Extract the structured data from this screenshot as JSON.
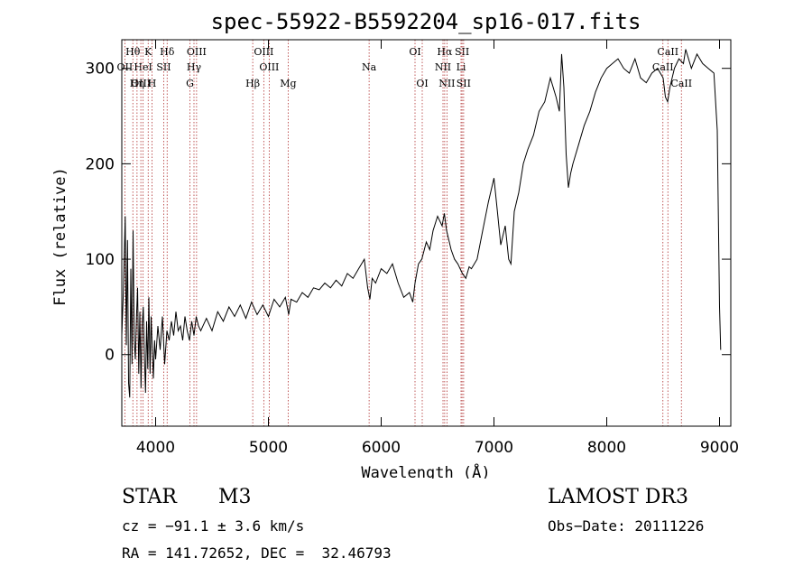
{
  "chart_data": {
    "type": "line",
    "title": "spec-55922-B5592204_sp16-017.fits",
    "xlabel": "Wavelength (Å)",
    "ylabel": "Flux (relative)",
    "xlim": [
      3700,
      9100
    ],
    "ylim": [
      -75,
      330
    ],
    "x_ticks": [
      4000,
      5000,
      6000,
      7000,
      8000,
      9000
    ],
    "y_ticks": [
      0,
      100,
      200,
      300
    ],
    "line_color": "#000000",
    "marker_color": "#b03030",
    "series": [
      {
        "name": "flux",
        "points": [
          [
            3700,
            20
          ],
          [
            3715,
            70
          ],
          [
            3730,
            145
          ],
          [
            3740,
            10
          ],
          [
            3750,
            120
          ],
          [
            3760,
            -30
          ],
          [
            3770,
            -45
          ],
          [
            3780,
            90
          ],
          [
            3790,
            -10
          ],
          [
            3800,
            130
          ],
          [
            3810,
            15
          ],
          [
            3820,
            -5
          ],
          [
            3830,
            40
          ],
          [
            3840,
            70
          ],
          [
            3850,
            -20
          ],
          [
            3860,
            45
          ],
          [
            3870,
            -35
          ],
          [
            3880,
            30
          ],
          [
            3890,
            50
          ],
          [
            3900,
            0
          ],
          [
            3910,
            -40
          ],
          [
            3920,
            35
          ],
          [
            3930,
            -15
          ],
          [
            3940,
            60
          ],
          [
            3950,
            -20
          ],
          [
            3960,
            40
          ],
          [
            3970,
            5
          ],
          [
            3980,
            -25
          ],
          [
            3990,
            15
          ],
          [
            4000,
            -5
          ],
          [
            4020,
            30
          ],
          [
            4040,
            5
          ],
          [
            4060,
            40
          ],
          [
            4080,
            -10
          ],
          [
            4100,
            25
          ],
          [
            4120,
            15
          ],
          [
            4140,
            35
          ],
          [
            4160,
            20
          ],
          [
            4180,
            45
          ],
          [
            4200,
            25
          ],
          [
            4220,
            30
          ],
          [
            4240,
            15
          ],
          [
            4260,
            40
          ],
          [
            4280,
            25
          ],
          [
            4300,
            15
          ],
          [
            4320,
            35
          ],
          [
            4340,
            20
          ],
          [
            4360,
            40
          ],
          [
            4380,
            30
          ],
          [
            4400,
            25
          ],
          [
            4450,
            38
          ],
          [
            4500,
            25
          ],
          [
            4550,
            45
          ],
          [
            4600,
            35
          ],
          [
            4650,
            50
          ],
          [
            4700,
            40
          ],
          [
            4750,
            52
          ],
          [
            4800,
            38
          ],
          [
            4850,
            55
          ],
          [
            4900,
            42
          ],
          [
            4950,
            52
          ],
          [
            5000,
            40
          ],
          [
            5050,
            58
          ],
          [
            5100,
            50
          ],
          [
            5150,
            60
          ],
          [
            5180,
            42
          ],
          [
            5200,
            58
          ],
          [
            5250,
            55
          ],
          [
            5300,
            65
          ],
          [
            5350,
            60
          ],
          [
            5400,
            70
          ],
          [
            5450,
            68
          ],
          [
            5500,
            75
          ],
          [
            5550,
            70
          ],
          [
            5600,
            78
          ],
          [
            5650,
            72
          ],
          [
            5700,
            85
          ],
          [
            5750,
            80
          ],
          [
            5800,
            90
          ],
          [
            5850,
            100
          ],
          [
            5880,
            70
          ],
          [
            5900,
            58
          ],
          [
            5920,
            80
          ],
          [
            5950,
            75
          ],
          [
            6000,
            90
          ],
          [
            6050,
            85
          ],
          [
            6100,
            95
          ],
          [
            6150,
            75
          ],
          [
            6200,
            60
          ],
          [
            6250,
            65
          ],
          [
            6280,
            55
          ],
          [
            6300,
            75
          ],
          [
            6330,
            95
          ],
          [
            6360,
            100
          ],
          [
            6400,
            118
          ],
          [
            6430,
            110
          ],
          [
            6460,
            130
          ],
          [
            6500,
            145
          ],
          [
            6520,
            140
          ],
          [
            6540,
            135
          ],
          [
            6560,
            148
          ],
          [
            6580,
            130
          ],
          [
            6600,
            120
          ],
          [
            6620,
            110
          ],
          [
            6650,
            100
          ],
          [
            6680,
            95
          ],
          [
            6700,
            90
          ],
          [
            6720,
            85
          ],
          [
            6750,
            80
          ],
          [
            6780,
            92
          ],
          [
            6800,
            90
          ],
          [
            6850,
            100
          ],
          [
            6900,
            130
          ],
          [
            6950,
            160
          ],
          [
            7000,
            185
          ],
          [
            7030,
            150
          ],
          [
            7060,
            115
          ],
          [
            7100,
            135
          ],
          [
            7130,
            100
          ],
          [
            7150,
            95
          ],
          [
            7180,
            150
          ],
          [
            7220,
            170
          ],
          [
            7260,
            200
          ],
          [
            7300,
            215
          ],
          [
            7350,
            230
          ],
          [
            7400,
            255
          ],
          [
            7450,
            265
          ],
          [
            7500,
            290
          ],
          [
            7550,
            270
          ],
          [
            7580,
            255
          ],
          [
            7600,
            315
          ],
          [
            7620,
            280
          ],
          [
            7640,
            210
          ],
          [
            7660,
            175
          ],
          [
            7680,
            190
          ],
          [
            7700,
            200
          ],
          [
            7750,
            220
          ],
          [
            7800,
            240
          ],
          [
            7850,
            255
          ],
          [
            7900,
            275
          ],
          [
            7950,
            290
          ],
          [
            8000,
            300
          ],
          [
            8050,
            305
          ],
          [
            8100,
            310
          ],
          [
            8150,
            300
          ],
          [
            8200,
            295
          ],
          [
            8250,
            310
          ],
          [
            8300,
            290
          ],
          [
            8350,
            285
          ],
          [
            8400,
            295
          ],
          [
            8450,
            300
          ],
          [
            8500,
            290
          ],
          [
            8520,
            270
          ],
          [
            8540,
            265
          ],
          [
            8560,
            280
          ],
          [
            8600,
            300
          ],
          [
            8640,
            310
          ],
          [
            8680,
            305
          ],
          [
            8700,
            320
          ],
          [
            8750,
            300
          ],
          [
            8800,
            315
          ],
          [
            8850,
            305
          ],
          [
            8900,
            300
          ],
          [
            8950,
            295
          ],
          [
            8980,
            235
          ],
          [
            9000,
            50
          ],
          [
            9010,
            5
          ]
        ]
      }
    ],
    "lines": [
      {
        "label": "Hθ",
        "wavelength": 3798,
        "row": 1
      },
      {
        "label": "K",
        "wavelength": 3934,
        "row": 1
      },
      {
        "label": "Hδ",
        "wavelength": 4102,
        "row": 1
      },
      {
        "label": "OIII",
        "wavelength": 4363,
        "row": 1
      },
      {
        "label": "OIII",
        "wavelength": 4959,
        "row": 1
      },
      {
        "label": "OI",
        "wavelength": 6300,
        "row": 1
      },
      {
        "label": "Hα",
        "wavelength": 6563,
        "row": 1
      },
      {
        "label": "SII",
        "wavelength": 6717,
        "row": 1
      },
      {
        "label": "CaII",
        "wavelength": 8542,
        "row": 1
      },
      {
        "label": "OII",
        "wavelength": 3727,
        "row": 2
      },
      {
        "label": "HeI",
        "wavelength": 3889,
        "row": 2
      },
      {
        "label": "SII",
        "wavelength": 4072,
        "row": 2
      },
      {
        "label": "Hγ",
        "wavelength": 4340,
        "row": 2
      },
      {
        "label": "OIII",
        "wavelength": 5007,
        "row": 2
      },
      {
        "label": "Na",
        "wavelength": 5893,
        "row": 2
      },
      {
        "label": "NII",
        "wavelength": 6548,
        "row": 2
      },
      {
        "label": "Li",
        "wavelength": 6708,
        "row": 2
      },
      {
        "label": "CaII",
        "wavelength": 8498,
        "row": 2
      },
      {
        "label": "OIII",
        "wavelength": 3869,
        "row": 3
      },
      {
        "label": "Hη",
        "wavelength": 3835,
        "row": 3
      },
      {
        "label": "H",
        "wavelength": 3968,
        "row": 3
      },
      {
        "label": "G",
        "wavelength": 4304,
        "row": 3
      },
      {
        "label": "Hβ",
        "wavelength": 4861,
        "row": 3
      },
      {
        "label": "Mg",
        "wavelength": 5175,
        "row": 3
      },
      {
        "label": "OI",
        "wavelength": 6364,
        "row": 3
      },
      {
        "label": "NII",
        "wavelength": 6583,
        "row": 3
      },
      {
        "label": "SII",
        "wavelength": 6731,
        "row": 3
      },
      {
        "label": "CaII",
        "wavelength": 8662,
        "row": 3
      }
    ]
  },
  "info": {
    "class": "STAR",
    "subclass": "M3",
    "survey": "LAMOST DR3",
    "cz": "cz = −91.1 ± 3.6 km/s",
    "obs_date": "Obs−Date: 20111226",
    "coords": "RA = 141.72652, DEC =  32.46793"
  }
}
